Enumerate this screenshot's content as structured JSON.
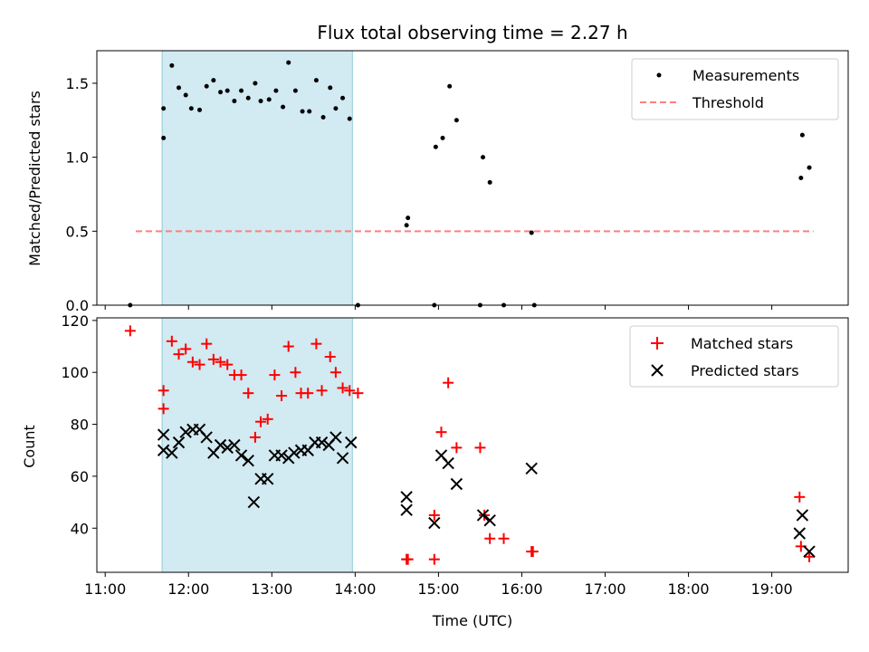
{
  "chart_data": [
    {
      "type": "scatter",
      "title": "Flux total observing time = 2.27 h",
      "ylabel": "Matched/Predicted stars",
      "xlabel": "",
      "ylim": [
        0,
        1.72
      ],
      "xlim": [
        "10:54",
        "19:55"
      ],
      "yticks": [
        "0.0",
        "0.5",
        "1.0",
        "1.5"
      ],
      "highlight_span": [
        "11:41",
        "13:58"
      ],
      "highlight_color": "#add8e6",
      "legend_position": "top-right",
      "series": [
        {
          "name": "Measurements",
          "marker": "dot",
          "color": "#000000",
          "points": [
            [
              "11:18",
              0.0
            ],
            [
              "11:42",
              1.33
            ],
            [
              "11:42",
              1.13
            ],
            [
              "11:48",
              1.62
            ],
            [
              "11:53",
              1.47
            ],
            [
              "11:58",
              1.42
            ],
            [
              "12:02",
              1.33
            ],
            [
              "12:08",
              1.32
            ],
            [
              "12:13",
              1.48
            ],
            [
              "12:18",
              1.52
            ],
            [
              "12:23",
              1.44
            ],
            [
              "12:28",
              1.45
            ],
            [
              "12:33",
              1.38
            ],
            [
              "12:38",
              1.45
            ],
            [
              "12:43",
              1.4
            ],
            [
              "12:48",
              1.5
            ],
            [
              "12:52",
              1.38
            ],
            [
              "12:58",
              1.39
            ],
            [
              "13:03",
              1.45
            ],
            [
              "13:08",
              1.34
            ],
            [
              "13:12",
              1.64
            ],
            [
              "13:17",
              1.45
            ],
            [
              "13:22",
              1.31
            ],
            [
              "13:27",
              1.31
            ],
            [
              "13:32",
              1.52
            ],
            [
              "13:37",
              1.27
            ],
            [
              "13:42",
              1.47
            ],
            [
              "13:46",
              1.33
            ],
            [
              "13:51",
              1.4
            ],
            [
              "13:56",
              1.26
            ],
            [
              "14:02",
              0.0
            ],
            [
              "14:37",
              0.54
            ],
            [
              "14:38",
              0.59
            ],
            [
              "14:57",
              0.0
            ],
            [
              "14:58",
              1.07
            ],
            [
              "15:03",
              1.13
            ],
            [
              "15:08",
              1.48
            ],
            [
              "15:13",
              1.25
            ],
            [
              "15:30",
              0.0
            ],
            [
              "15:32",
              1.0
            ],
            [
              "15:37",
              0.83
            ],
            [
              "15:47",
              0.0
            ],
            [
              "16:07",
              0.49
            ],
            [
              "16:09",
              0.0
            ],
            [
              "19:21",
              0.86
            ],
            [
              "19:22",
              1.15
            ],
            [
              "19:27",
              0.93
            ]
          ]
        },
        {
          "name": "Threshold",
          "style": "dashed",
          "color": "#ff7f7f",
          "x": [
            "11:22",
            "19:30"
          ],
          "y": [
            0.5,
            0.5
          ]
        }
      ]
    },
    {
      "type": "scatter",
      "title": "",
      "ylabel": "Count",
      "xlabel": "Time (UTC)",
      "ylim": [
        23,
        121
      ],
      "xlim": [
        "10:54",
        "19:55"
      ],
      "yticks": [
        "40",
        "60",
        "80",
        "100",
        "120"
      ],
      "xticks": [
        "11:00",
        "12:00",
        "13:00",
        "14:00",
        "15:00",
        "16:00",
        "17:00",
        "18:00",
        "19:00"
      ],
      "highlight_span": [
        "11:41",
        "13:58"
      ],
      "highlight_color": "#add8e6",
      "legend_position": "top-right",
      "series": [
        {
          "name": "Matched stars",
          "marker": "plus",
          "color": "#ff0000",
          "points": [
            [
              "11:18",
              116
            ],
            [
              "11:42",
              93
            ],
            [
              "11:42",
              86
            ],
            [
              "11:48",
              112
            ],
            [
              "11:53",
              107
            ],
            [
              "11:58",
              109
            ],
            [
              "12:03",
              104
            ],
            [
              "12:08",
              103
            ],
            [
              "12:13",
              111
            ],
            [
              "12:18",
              105
            ],
            [
              "12:23",
              104
            ],
            [
              "12:28",
              103
            ],
            [
              "12:33",
              99
            ],
            [
              "12:38",
              99
            ],
            [
              "12:43",
              92
            ],
            [
              "12:48",
              75
            ],
            [
              "12:52",
              81
            ],
            [
              "12:57",
              82
            ],
            [
              "13:02",
              99
            ],
            [
              "13:07",
              91
            ],
            [
              "13:12",
              110
            ],
            [
              "13:17",
              100
            ],
            [
              "13:21",
              92
            ],
            [
              "13:26",
              92
            ],
            [
              "13:32",
              111
            ],
            [
              "13:36",
              93
            ],
            [
              "13:42",
              106
            ],
            [
              "13:46",
              100
            ],
            [
              "13:51",
              94
            ],
            [
              "13:56",
              93
            ],
            [
              "14:02",
              92
            ],
            [
              "14:37",
              28
            ],
            [
              "14:38",
              28
            ],
            [
              "14:57",
              45
            ],
            [
              "14:57",
              28
            ],
            [
              "15:02",
              77
            ],
            [
              "15:07",
              96
            ],
            [
              "15:13",
              71
            ],
            [
              "15:30",
              71
            ],
            [
              "15:33",
              45
            ],
            [
              "15:37",
              36
            ],
            [
              "15:47",
              36
            ],
            [
              "16:07",
              31
            ],
            [
              "16:08",
              31
            ],
            [
              "19:20",
              52
            ],
            [
              "19:21",
              33
            ],
            [
              "19:27",
              29
            ]
          ]
        },
        {
          "name": "Predicted stars",
          "marker": "x",
          "color": "#000000",
          "points": [
            [
              "11:42",
              76
            ],
            [
              "11:42",
              70
            ],
            [
              "11:48",
              69
            ],
            [
              "11:53",
              73
            ],
            [
              "11:58",
              77
            ],
            [
              "12:03",
              78
            ],
            [
              "12:08",
              78
            ],
            [
              "12:13",
              75
            ],
            [
              "12:18",
              69
            ],
            [
              "12:23",
              72
            ],
            [
              "12:28",
              71
            ],
            [
              "12:33",
              72
            ],
            [
              "12:38",
              68
            ],
            [
              "12:43",
              66
            ],
            [
              "12:47",
              50
            ],
            [
              "12:52",
              59
            ],
            [
              "12:57",
              59
            ],
            [
              "13:02",
              68
            ],
            [
              "13:07",
              68
            ],
            [
              "13:12",
              67
            ],
            [
              "13:16",
              69
            ],
            [
              "13:21",
              70
            ],
            [
              "13:26",
              70
            ],
            [
              "13:31",
              73
            ],
            [
              "13:36",
              73
            ],
            [
              "13:41",
              72
            ],
            [
              "13:46",
              75
            ],
            [
              "13:51",
              67
            ],
            [
              "13:57",
              73
            ],
            [
              "14:37",
              52
            ],
            [
              "14:37",
              47
            ],
            [
              "14:57",
              42
            ],
            [
              "15:02",
              68
            ],
            [
              "15:07",
              65
            ],
            [
              "15:13",
              57
            ],
            [
              "15:32",
              45
            ],
            [
              "15:37",
              43
            ],
            [
              "16:07",
              63
            ],
            [
              "19:20",
              38
            ],
            [
              "19:22",
              45
            ],
            [
              "19:27",
              31
            ]
          ]
        }
      ]
    }
  ]
}
